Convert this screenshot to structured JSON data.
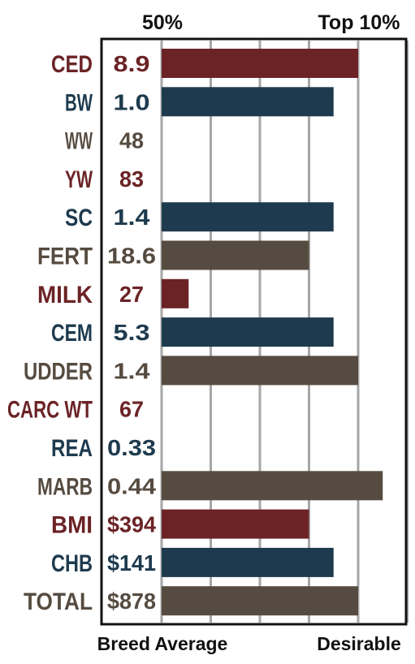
{
  "chart_data": {
    "type": "bar",
    "orientation": "horizontal",
    "top_labels": {
      "mid": "50%",
      "top": "Top 10%"
    },
    "bottom_labels": {
      "left": "Breed Average",
      "right": "Desirable"
    },
    "grid": true,
    "scale_max": 5,
    "colors": {
      "red": "#6b2326",
      "blue": "#1e3a4e",
      "brown": "#564b40",
      "grid": "#a6a6a6",
      "frame": "#111111"
    },
    "rows": [
      {
        "trait": "CED",
        "value_label": "8.9",
        "bar": 4.0,
        "color": "red"
      },
      {
        "trait": "BW",
        "value_label": "1.0",
        "bar": 3.5,
        "color": "blue"
      },
      {
        "trait": "WW",
        "value_label": "48",
        "bar": 0,
        "color": "brown"
      },
      {
        "trait": "YW",
        "value_label": "83",
        "bar": 0,
        "color": "red"
      },
      {
        "trait": "SC",
        "value_label": "1.4",
        "bar": 3.5,
        "color": "blue"
      },
      {
        "trait": "FERT",
        "value_label": "18.6",
        "bar": 3.0,
        "color": "brown"
      },
      {
        "trait": "MILK",
        "value_label": "27",
        "bar": 0.55,
        "color": "red"
      },
      {
        "trait": "CEM",
        "value_label": "5.3",
        "bar": 3.5,
        "color": "blue"
      },
      {
        "trait": "UDDER",
        "value_label": "1.4",
        "bar": 4.0,
        "color": "brown"
      },
      {
        "trait": "CARC WT",
        "value_label": "67",
        "bar": 0,
        "color": "red"
      },
      {
        "trait": "REA",
        "value_label": "0.33",
        "bar": 0,
        "color": "blue"
      },
      {
        "trait": "MARB",
        "value_label": "0.44",
        "bar": 4.5,
        "color": "brown"
      },
      {
        "trait": "BMI",
        "value_label": "$394",
        "bar": 3.0,
        "color": "red"
      },
      {
        "trait": "CHB",
        "value_label": "$141",
        "bar": 3.5,
        "color": "blue"
      },
      {
        "trait": "TOTAL",
        "value_label": "$878",
        "bar": 4.0,
        "color": "brown"
      }
    ]
  }
}
